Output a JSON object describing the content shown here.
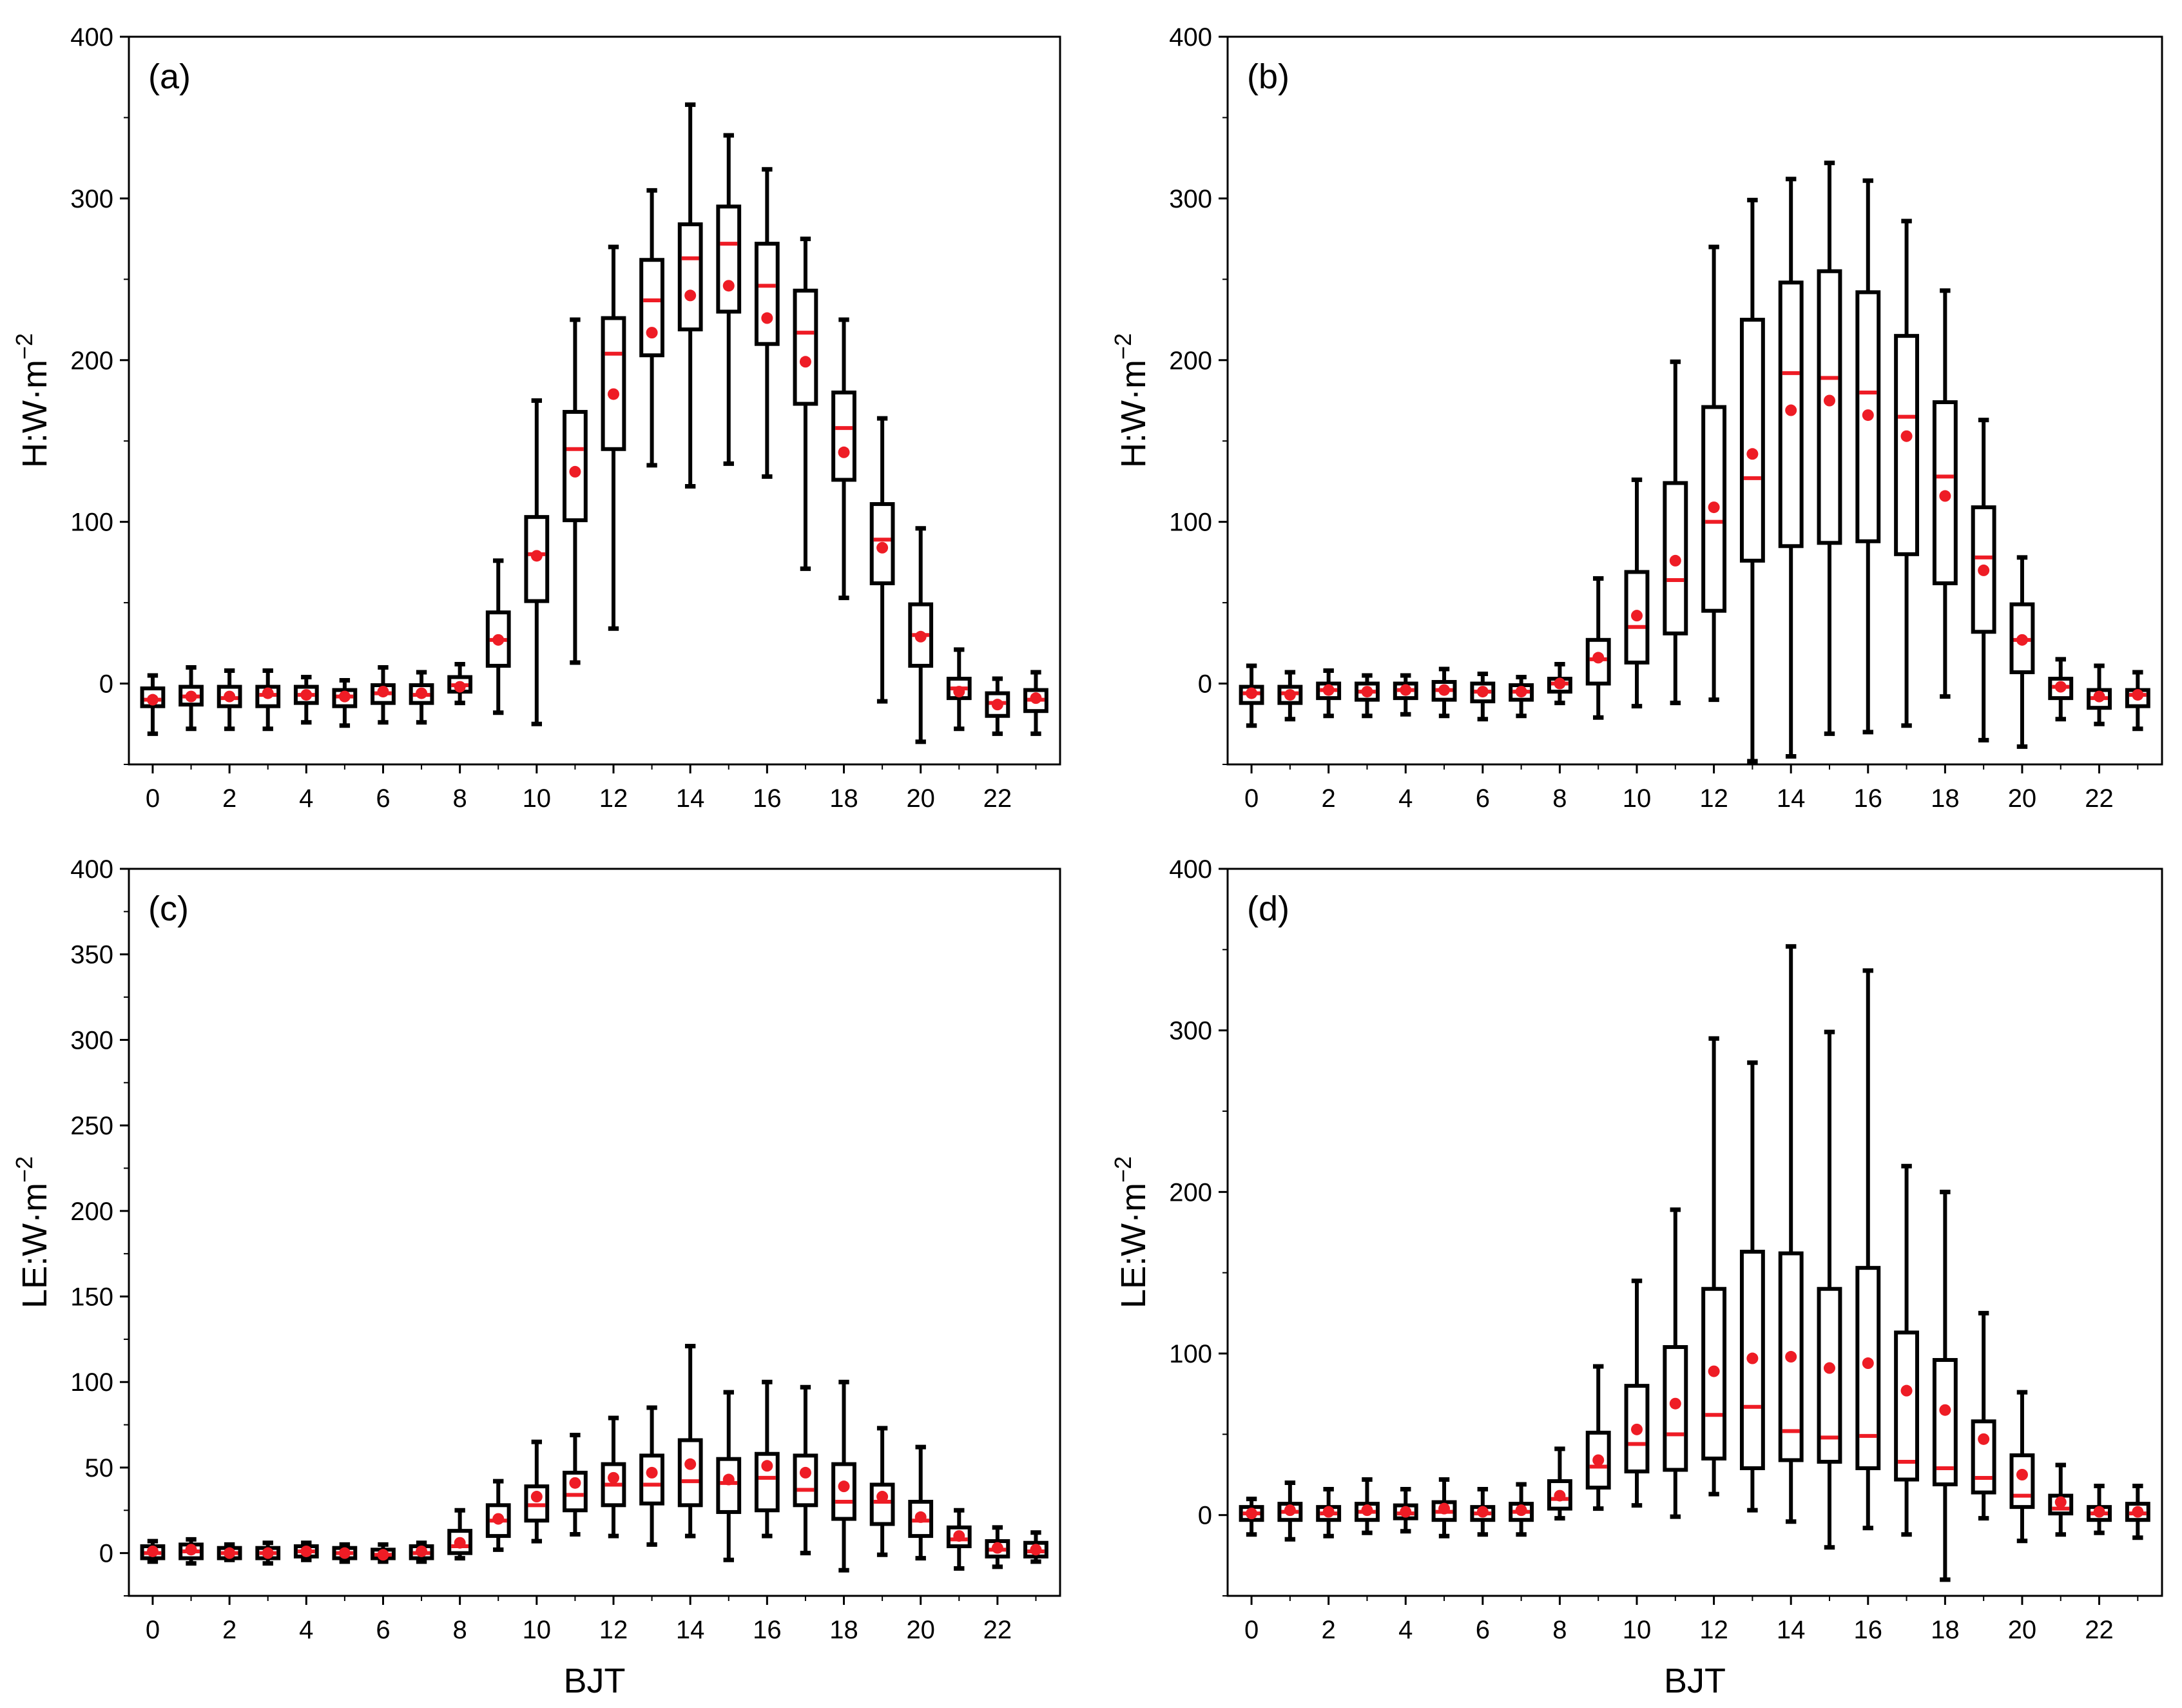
{
  "chart_data": [
    {
      "type": "box",
      "panel": "(a)",
      "xlabel": "",
      "ylabel": "H:W·m",
      "ylabel_exp": "−2",
      "ylim": [
        -50,
        400
      ],
      "yticks": [
        0,
        100,
        200,
        300,
        400
      ],
      "xtick_labels": [
        "0",
        "2",
        "4",
        "6",
        "8",
        "10",
        "12",
        "14",
        "16",
        "18",
        "20",
        "22"
      ],
      "hours": [
        0,
        1,
        2,
        3,
        4,
        5,
        6,
        7,
        8,
        9,
        10,
        11,
        12,
        13,
        14,
        15,
        16,
        17,
        18,
        19,
        20,
        21,
        22,
        23
      ],
      "q1": [
        -14,
        -13,
        -14,
        -14,
        -12,
        -14,
        -12,
        -12,
        -5,
        11,
        51,
        101,
        145,
        203,
        219,
        230,
        210,
        173,
        126,
        62,
        11,
        -9,
        -20,
        -17
      ],
      "q3": [
        -3,
        -2,
        -2,
        -2,
        -2,
        -4,
        -1,
        -1,
        4,
        44,
        103,
        168,
        226,
        262,
        284,
        295,
        272,
        243,
        180,
        111,
        49,
        3,
        -6,
        -4
      ],
      "median": [
        -10,
        -8,
        -9,
        -7,
        -7,
        -8,
        -6,
        -7,
        -1,
        27,
        80,
        145,
        204,
        237,
        263,
        272,
        246,
        217,
        158,
        89,
        30,
        -3,
        -12,
        -10
      ],
      "mean": [
        -10,
        -8,
        -8,
        -6,
        -7,
        -8,
        -5,
        -6,
        -2,
        27,
        79,
        131,
        179,
        217,
        240,
        246,
        226,
        199,
        143,
        84,
        29,
        -5,
        -13,
        -9
      ],
      "whisker_low": [
        -31,
        -28,
        -28,
        -28,
        -24,
        -26,
        -24,
        -24,
        -12,
        -18,
        -25,
        13,
        34,
        135,
        122,
        136,
        128,
        71,
        53,
        -11,
        -36,
        -28,
        -31,
        -31
      ],
      "whisker_high": [
        5,
        10,
        8,
        8,
        4,
        2,
        10,
        7,
        12,
        76,
        175,
        225,
        270,
        305,
        358,
        339,
        318,
        275,
        225,
        164,
        96,
        21,
        3,
        7
      ]
    },
    {
      "type": "box",
      "panel": "(b)",
      "xlabel": "",
      "ylabel": "H:W·m",
      "ylabel_exp": "−2",
      "ylim": [
        -50,
        400
      ],
      "yticks": [
        0,
        100,
        200,
        300,
        400
      ],
      "xtick_labels": [
        "0",
        "2",
        "4",
        "6",
        "8",
        "10",
        "12",
        "14",
        "16",
        "18",
        "20",
        "22"
      ],
      "hours": [
        0,
        1,
        2,
        3,
        4,
        5,
        6,
        7,
        8,
        9,
        10,
        11,
        12,
        13,
        14,
        15,
        16,
        17,
        18,
        19,
        20,
        21,
        22,
        23
      ],
      "q1": [
        -12,
        -12,
        -9,
        -10,
        -9,
        -10,
        -11,
        -10,
        -5,
        0,
        13,
        31,
        45,
        76,
        85,
        87,
        88,
        80,
        62,
        32,
        7,
        -9,
        -15,
        -14
      ],
      "q3": [
        -2,
        -2,
        0,
        0,
        0,
        1,
        0,
        -1,
        3,
        27,
        69,
        124,
        171,
        225,
        248,
        255,
        242,
        215,
        174,
        109,
        49,
        3,
        -4,
        -4
      ],
      "median": [
        -6,
        -6,
        -4,
        -5,
        -4,
        -4,
        -5,
        -5,
        0,
        15,
        35,
        64,
        100,
        127,
        192,
        189,
        180,
        165,
        128,
        78,
        27,
        -2,
        -9,
        -7
      ],
      "mean": [
        -6,
        -7,
        -4,
        -5,
        -4,
        -4,
        -5,
        -5,
        0,
        16,
        42,
        76,
        109,
        142,
        169,
        175,
        166,
        153,
        116,
        70,
        27,
        -2,
        -8,
        -7
      ],
      "whisker_low": [
        -26,
        -22,
        -20,
        -20,
        -19,
        -20,
        -22,
        -20,
        -12,
        -21,
        -14,
        -12,
        -10,
        -48,
        -45,
        -31,
        -30,
        -26,
        -8,
        -35,
        -39,
        -22,
        -25,
        -28
      ],
      "whisker_high": [
        11,
        7,
        8,
        5,
        5,
        9,
        6,
        4,
        12,
        65,
        126,
        199,
        270,
        299,
        312,
        322,
        311,
        286,
        243,
        163,
        78,
        15,
        11,
        7
      ]
    },
    {
      "type": "box",
      "panel": "(c)",
      "xlabel": "BJT",
      "ylabel": "LE:W·m",
      "ylabel_exp": "−2",
      "ylim": [
        -25,
        400
      ],
      "yticks": [
        0,
        50,
        100,
        150,
        200,
        250,
        300,
        350,
        400
      ],
      "xtick_labels": [
        "0",
        "2",
        "4",
        "6",
        "8",
        "10",
        "12",
        "14",
        "16",
        "18",
        "20",
        "22"
      ],
      "hours": [
        0,
        1,
        2,
        3,
        4,
        5,
        6,
        7,
        8,
        9,
        10,
        11,
        12,
        13,
        14,
        15,
        16,
        17,
        18,
        19,
        20,
        21,
        22,
        23
      ],
      "q1": [
        -3,
        -3,
        -3,
        -3,
        -2,
        -3,
        -3,
        -3,
        0,
        10,
        19,
        25,
        28,
        29,
        28,
        24,
        25,
        28,
        20,
        17,
        10,
        4,
        -2,
        -2
      ],
      "q3": [
        4,
        5,
        3,
        3,
        4,
        3,
        2,
        4,
        13,
        28,
        39,
        47,
        52,
        57,
        66,
        55,
        58,
        57,
        52,
        40,
        30,
        15,
        7,
        6
      ],
      "median": [
        0,
        1,
        0,
        0,
        1,
        0,
        -1,
        0,
        4,
        19,
        28,
        34,
        40,
        40,
        42,
        41,
        44,
        37,
        30,
        30,
        19,
        8,
        2,
        1
      ],
      "mean": [
        1,
        2,
        0,
        0,
        1,
        0,
        -1,
        1,
        6,
        20,
        33,
        41,
        44,
        47,
        52,
        43,
        51,
        47,
        39,
        33,
        21,
        10,
        3,
        2
      ],
      "whisker_low": [
        -5,
        -6,
        -4,
        -6,
        -4,
        -5,
        -5,
        -5,
        -3,
        2,
        7,
        11,
        10,
        5,
        10,
        -4,
        10,
        0,
        -10,
        -1,
        -3,
        -9,
        -8,
        -5
      ],
      "whisker_high": [
        7,
        8,
        5,
        6,
        6,
        5,
        5,
        6,
        25,
        42,
        65,
        69,
        79,
        85,
        121,
        94,
        100,
        97,
        100,
        73,
        62,
        25,
        15,
        12
      ]
    },
    {
      "type": "box",
      "panel": "(d)",
      "xlabel": "BJT",
      "ylabel": "LE:W·m",
      "ylabel_exp": "−2",
      "ylim": [
        -50,
        400
      ],
      "yticks": [
        0,
        100,
        200,
        300,
        400
      ],
      "xtick_labels": [
        "0",
        "2",
        "4",
        "6",
        "8",
        "10",
        "12",
        "14",
        "16",
        "18",
        "20",
        "22"
      ],
      "hours": [
        0,
        1,
        2,
        3,
        4,
        5,
        6,
        7,
        8,
        9,
        10,
        11,
        12,
        13,
        14,
        15,
        16,
        17,
        18,
        19,
        20,
        21,
        22,
        23
      ],
      "q1": [
        -3,
        -3,
        -3,
        -3,
        -2,
        -3,
        -3,
        -3,
        4,
        17,
        27,
        28,
        35,
        29,
        34,
        33,
        29,
        22,
        19,
        14,
        5,
        1,
        -3,
        -3
      ],
      "q3": [
        5,
        7,
        5,
        7,
        6,
        8,
        5,
        7,
        21,
        51,
        80,
        104,
        140,
        163,
        162,
        140,
        153,
        113,
        96,
        58,
        37,
        12,
        5,
        7
      ],
      "median": [
        1,
        2,
        1,
        2,
        1,
        2,
        1,
        2,
        10,
        30,
        44,
        50,
        62,
        67,
        52,
        48,
        49,
        33,
        29,
        23,
        12,
        4,
        1,
        1
      ],
      "mean": [
        1,
        3,
        2,
        3,
        2,
        4,
        2,
        3,
        12,
        34,
        53,
        69,
        89,
        97,
        98,
        91,
        94,
        77,
        65,
        47,
        25,
        8,
        2,
        2
      ],
      "whisker_low": [
        -12,
        -15,
        -13,
        -11,
        -10,
        -13,
        -12,
        -12,
        -2,
        4,
        6,
        -1,
        13,
        3,
        -4,
        -20,
        -8,
        -12,
        -40,
        -2,
        -16,
        -12,
        -11,
        -14
      ],
      "whisker_high": [
        10,
        20,
        16,
        22,
        16,
        22,
        16,
        19,
        41,
        92,
        145,
        189,
        295,
        280,
        352,
        299,
        337,
        216,
        200,
        125,
        76,
        31,
        18,
        18
      ]
    }
  ]
}
